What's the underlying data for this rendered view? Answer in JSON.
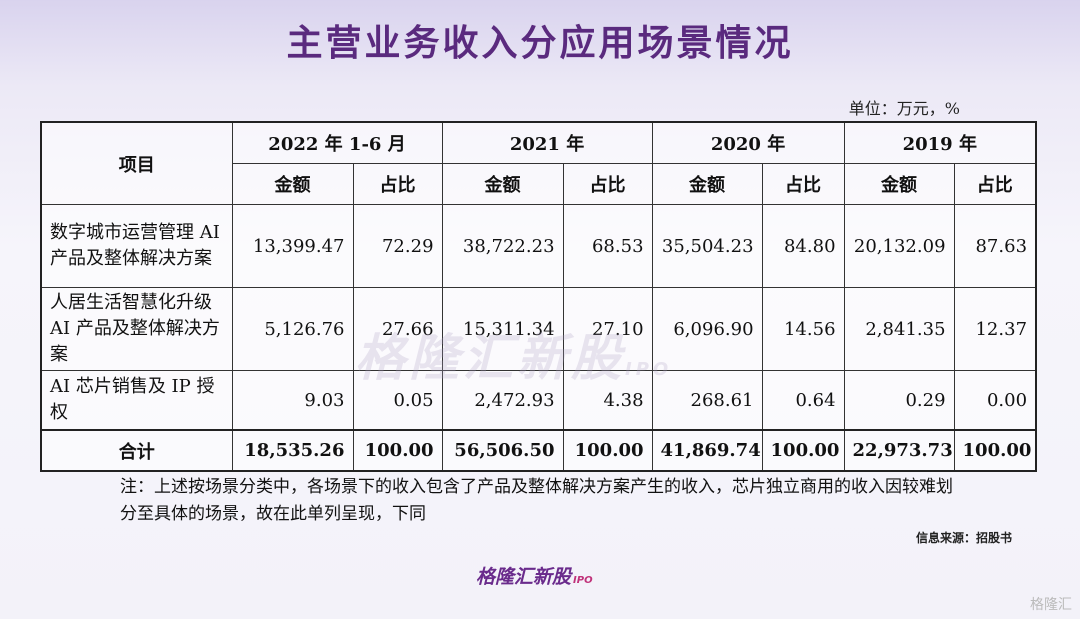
{
  "title": "主营业务收入分应用场景情况",
  "unit": "单位：万元，%",
  "table": {
    "item_header": "项目",
    "periods": [
      "2022 年 1-6 月",
      "2021 年",
      "2020 年",
      "2019 年"
    ],
    "amount_label": "金额",
    "ratio_label": "占比",
    "rows": [
      {
        "item": "数字城市运营管理 AI 产品及整体解决方案",
        "cells": [
          "13,399.47",
          "72.29",
          "38,722.23",
          "68.53",
          "35,504.23",
          "84.80",
          "20,132.09",
          "87.63"
        ]
      },
      {
        "item": "人居生活智慧化升级 AI 产品及整体解决方案",
        "cells": [
          "5,126.76",
          "27.66",
          "15,311.34",
          "27.10",
          "6,096.90",
          "14.56",
          "2,841.35",
          "12.37"
        ]
      },
      {
        "item": "AI 芯片销售及 IP 授权",
        "cells": [
          "9.03",
          "0.05",
          "2,472.93",
          "4.38",
          "268.61",
          "0.64",
          "0.29",
          "0.00"
        ]
      }
    ],
    "total": {
      "label": "合计",
      "cells": [
        "18,535.26",
        "100.00",
        "56,506.50",
        "100.00",
        "41,869.74",
        "100.00",
        "22,973.73",
        "100.00"
      ]
    }
  },
  "note": "注：上述按场景分类中，各场景下的收入包含了产品及整体解决方案产生的收入，芯片独立商用的收入因较难划分至具体的场景，故在此单列呈现，下同",
  "source": "信息来源：招股书",
  "brand": {
    "name": "格隆汇新股",
    "sub": "IPO"
  },
  "watermark": {
    "name": "格隆汇新股",
    "sub": "IPO"
  },
  "corner_mark": "格隆汇"
}
